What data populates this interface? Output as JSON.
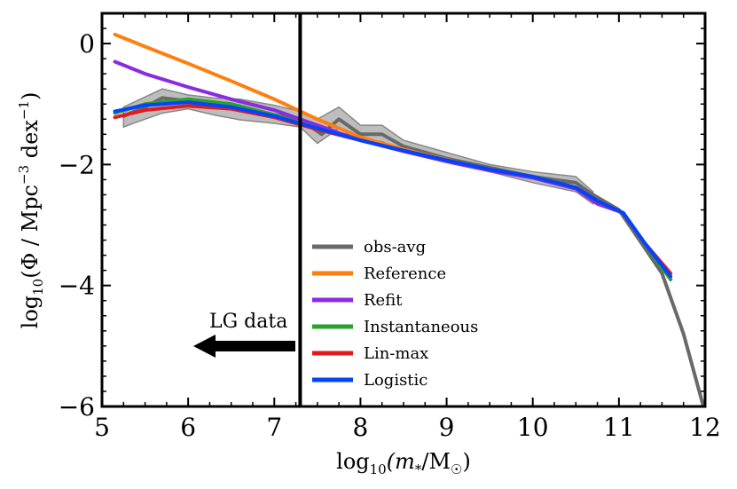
{
  "chart_data": {
    "type": "line",
    "title": "",
    "xlabel": {
      "prefix": "log",
      "sub": "10",
      "body": "(m",
      "sub2": "*",
      "tail": "/M",
      "sun": "☉",
      "close": ")"
    },
    "ylabel": {
      "prefix": "log",
      "sub": "10",
      "body": "(Φ / Mpc",
      "sup1": "−3",
      "mid": " dex",
      "sup2": "−1",
      "close": ")"
    },
    "xlim": [
      5,
      12
    ],
    "ylim": [
      -6,
      0.5
    ],
    "xticks": [
      5,
      6,
      7,
      8,
      9,
      10,
      11,
      12
    ],
    "xtick_labels": [
      "5",
      "6",
      "7",
      "8",
      "9",
      "10",
      "11",
      "12"
    ],
    "yticks": [
      0,
      -2,
      -4,
      -6
    ],
    "ytick_labels": [
      "0",
      "−2",
      "−4",
      "−6"
    ],
    "vline": 7.3,
    "annotation": {
      "text": "LG data",
      "direction": "left"
    },
    "band": {
      "name": "obs-range",
      "color": "#bdbdbd",
      "x": [
        5.25,
        5.4,
        5.7,
        6.0,
        6.3,
        6.6,
        7.0,
        7.3,
        7.5,
        7.75,
        8.0,
        8.25,
        8.5,
        9.0,
        9.5,
        10.0,
        10.5,
        10.7
      ],
      "upper": [
        -1.05,
        -0.95,
        -0.75,
        -0.85,
        -0.9,
        -0.92,
        -1.02,
        -1.12,
        -1.25,
        -1.05,
        -1.35,
        -1.35,
        -1.6,
        -1.8,
        -2.0,
        -2.12,
        -2.2,
        -2.45
      ],
      "lower": [
        -1.38,
        -1.3,
        -1.15,
        -1.08,
        -1.18,
        -1.26,
        -1.32,
        -1.38,
        -1.65,
        -1.4,
        -1.62,
        -1.62,
        -1.78,
        -1.95,
        -2.12,
        -2.3,
        -2.45,
        -2.65
      ]
    },
    "series": [
      {
        "name": "obs-avg",
        "color": "#696969",
        "width": 4,
        "x": [
          5.25,
          5.5,
          5.7,
          6.0,
          6.3,
          6.6,
          7.0,
          7.3,
          7.55,
          7.75,
          8.0,
          8.25,
          8.5,
          9.0,
          9.5,
          10.0,
          10.5,
          10.7,
          11.0,
          11.5,
          11.75,
          12.0
        ],
        "y": [
          -1.2,
          -1.05,
          -0.9,
          -0.95,
          -1.0,
          -1.08,
          -1.18,
          -1.25,
          -1.5,
          -1.25,
          -1.5,
          -1.5,
          -1.7,
          -1.9,
          -2.05,
          -2.2,
          -2.3,
          -2.5,
          -2.75,
          -3.8,
          -4.8,
          -6.1
        ]
      },
      {
        "name": "Reference",
        "color": "#ff7f0e",
        "width": 4,
        "x": [
          5.15,
          5.5,
          6.0,
          6.5,
          7.0,
          7.5,
          8.0,
          8.5,
          9.0,
          9.5,
          10.0,
          10.5,
          10.75,
          11.05,
          11.3,
          11.6
        ],
        "y": [
          0.15,
          -0.05,
          -0.33,
          -0.62,
          -0.92,
          -1.25,
          -1.55,
          -1.75,
          -1.92,
          -2.1,
          -2.2,
          -2.38,
          -2.6,
          -2.8,
          -3.3,
          -3.85
        ]
      },
      {
        "name": "Refit",
        "color": "#8a2be2",
        "width": 4,
        "x": [
          5.15,
          5.5,
          6.0,
          6.5,
          7.0,
          7.5,
          8.0,
          8.5,
          9.0,
          9.5,
          10.0,
          10.5,
          10.75,
          11.05,
          11.3,
          11.6
        ],
        "y": [
          -0.3,
          -0.5,
          -0.72,
          -0.92,
          -1.1,
          -1.35,
          -1.6,
          -1.78,
          -1.95,
          -2.1,
          -2.22,
          -2.4,
          -2.65,
          -2.8,
          -3.3,
          -3.9
        ]
      },
      {
        "name": "Instantaneous",
        "color": "#2ca02c",
        "width": 4,
        "x": [
          5.15,
          5.5,
          6.0,
          6.5,
          7.0,
          7.5,
          8.0,
          8.5,
          9.0,
          9.5,
          10.0,
          10.5,
          10.75,
          11.05,
          11.3,
          11.6
        ],
        "y": [
          -1.15,
          -1.0,
          -0.92,
          -1.0,
          -1.18,
          -1.4,
          -1.6,
          -1.77,
          -1.93,
          -2.08,
          -2.2,
          -2.38,
          -2.6,
          -2.8,
          -3.3,
          -3.9
        ]
      },
      {
        "name": "Lin-max",
        "color": "#e31a1c",
        "width": 4,
        "x": [
          5.15,
          5.5,
          6.0,
          6.5,
          7.0,
          7.5,
          8.0,
          8.5,
          9.0,
          9.5,
          10.0,
          10.5,
          10.75,
          11.05,
          11.3,
          11.6
        ],
        "y": [
          -1.22,
          -1.1,
          -1.03,
          -1.08,
          -1.22,
          -1.42,
          -1.6,
          -1.77,
          -1.93,
          -2.08,
          -2.2,
          -2.38,
          -2.6,
          -2.8,
          -3.3,
          -3.8
        ]
      },
      {
        "name": "Logistic",
        "color": "#0044ff",
        "width": 4,
        "x": [
          5.15,
          5.5,
          6.0,
          6.5,
          7.0,
          7.5,
          8.0,
          8.5,
          9.0,
          9.5,
          10.0,
          10.5,
          10.75,
          11.05,
          11.3,
          11.6
        ],
        "y": [
          -1.12,
          -1.02,
          -0.97,
          -1.05,
          -1.2,
          -1.4,
          -1.6,
          -1.77,
          -1.93,
          -2.08,
          -2.2,
          -2.38,
          -2.6,
          -2.8,
          -3.3,
          -3.85
        ]
      }
    ],
    "legend": {
      "placement": "lower-center",
      "entries": [
        "obs-avg",
        "Reference",
        "Refit",
        "Instantaneous",
        "Lin-max",
        "Logistic"
      ]
    }
  }
}
